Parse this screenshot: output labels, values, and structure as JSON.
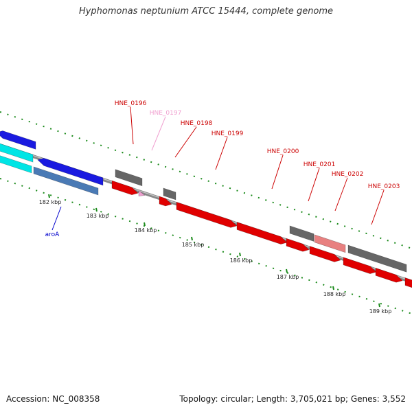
{
  "title": "Hyphomonas neptunium ATCC 15444, complete genome",
  "footer": {
    "accession": "Accession: NC_008358",
    "summary": "Topology: circular; Length: 3,705,021 bp; Genes: 3,552"
  },
  "colors": {
    "backbone": "#888888",
    "forward_gene": "#e00000",
    "reverse_gene": "#1a1ae0",
    "cds_grey": "#666666",
    "pseudo_pink": "#e88080",
    "trna_pink": "#f0a0d0",
    "cyan": "#00e5e5",
    "steel_blue": "#4a7ab5",
    "tick_green": "#1a8a1a",
    "label_red": "#cc0000",
    "label_pink": "#f0a0d0",
    "label_blue": "#0000cc"
  },
  "ticks": [
    "182 kbp",
    "183 kbp",
    "184 kbp",
    "185 kbp",
    "186 kbp",
    "187 kbp",
    "188 kbp",
    "189 kbp"
  ],
  "gene_labels": [
    {
      "name": "HNE_0196",
      "color": "red"
    },
    {
      "name": "HNE_0197",
      "color": "pink"
    },
    {
      "name": "HNE_0198",
      "color": "red"
    },
    {
      "name": "HNE_0199",
      "color": "red"
    },
    {
      "name": "HNE_0200",
      "color": "red"
    },
    {
      "name": "HNE_0201",
      "color": "red"
    },
    {
      "name": "HNE_0202",
      "color": "red"
    },
    {
      "name": "HNE_0203",
      "color": "red"
    },
    {
      "name": "aroA",
      "color": "blue"
    }
  ]
}
